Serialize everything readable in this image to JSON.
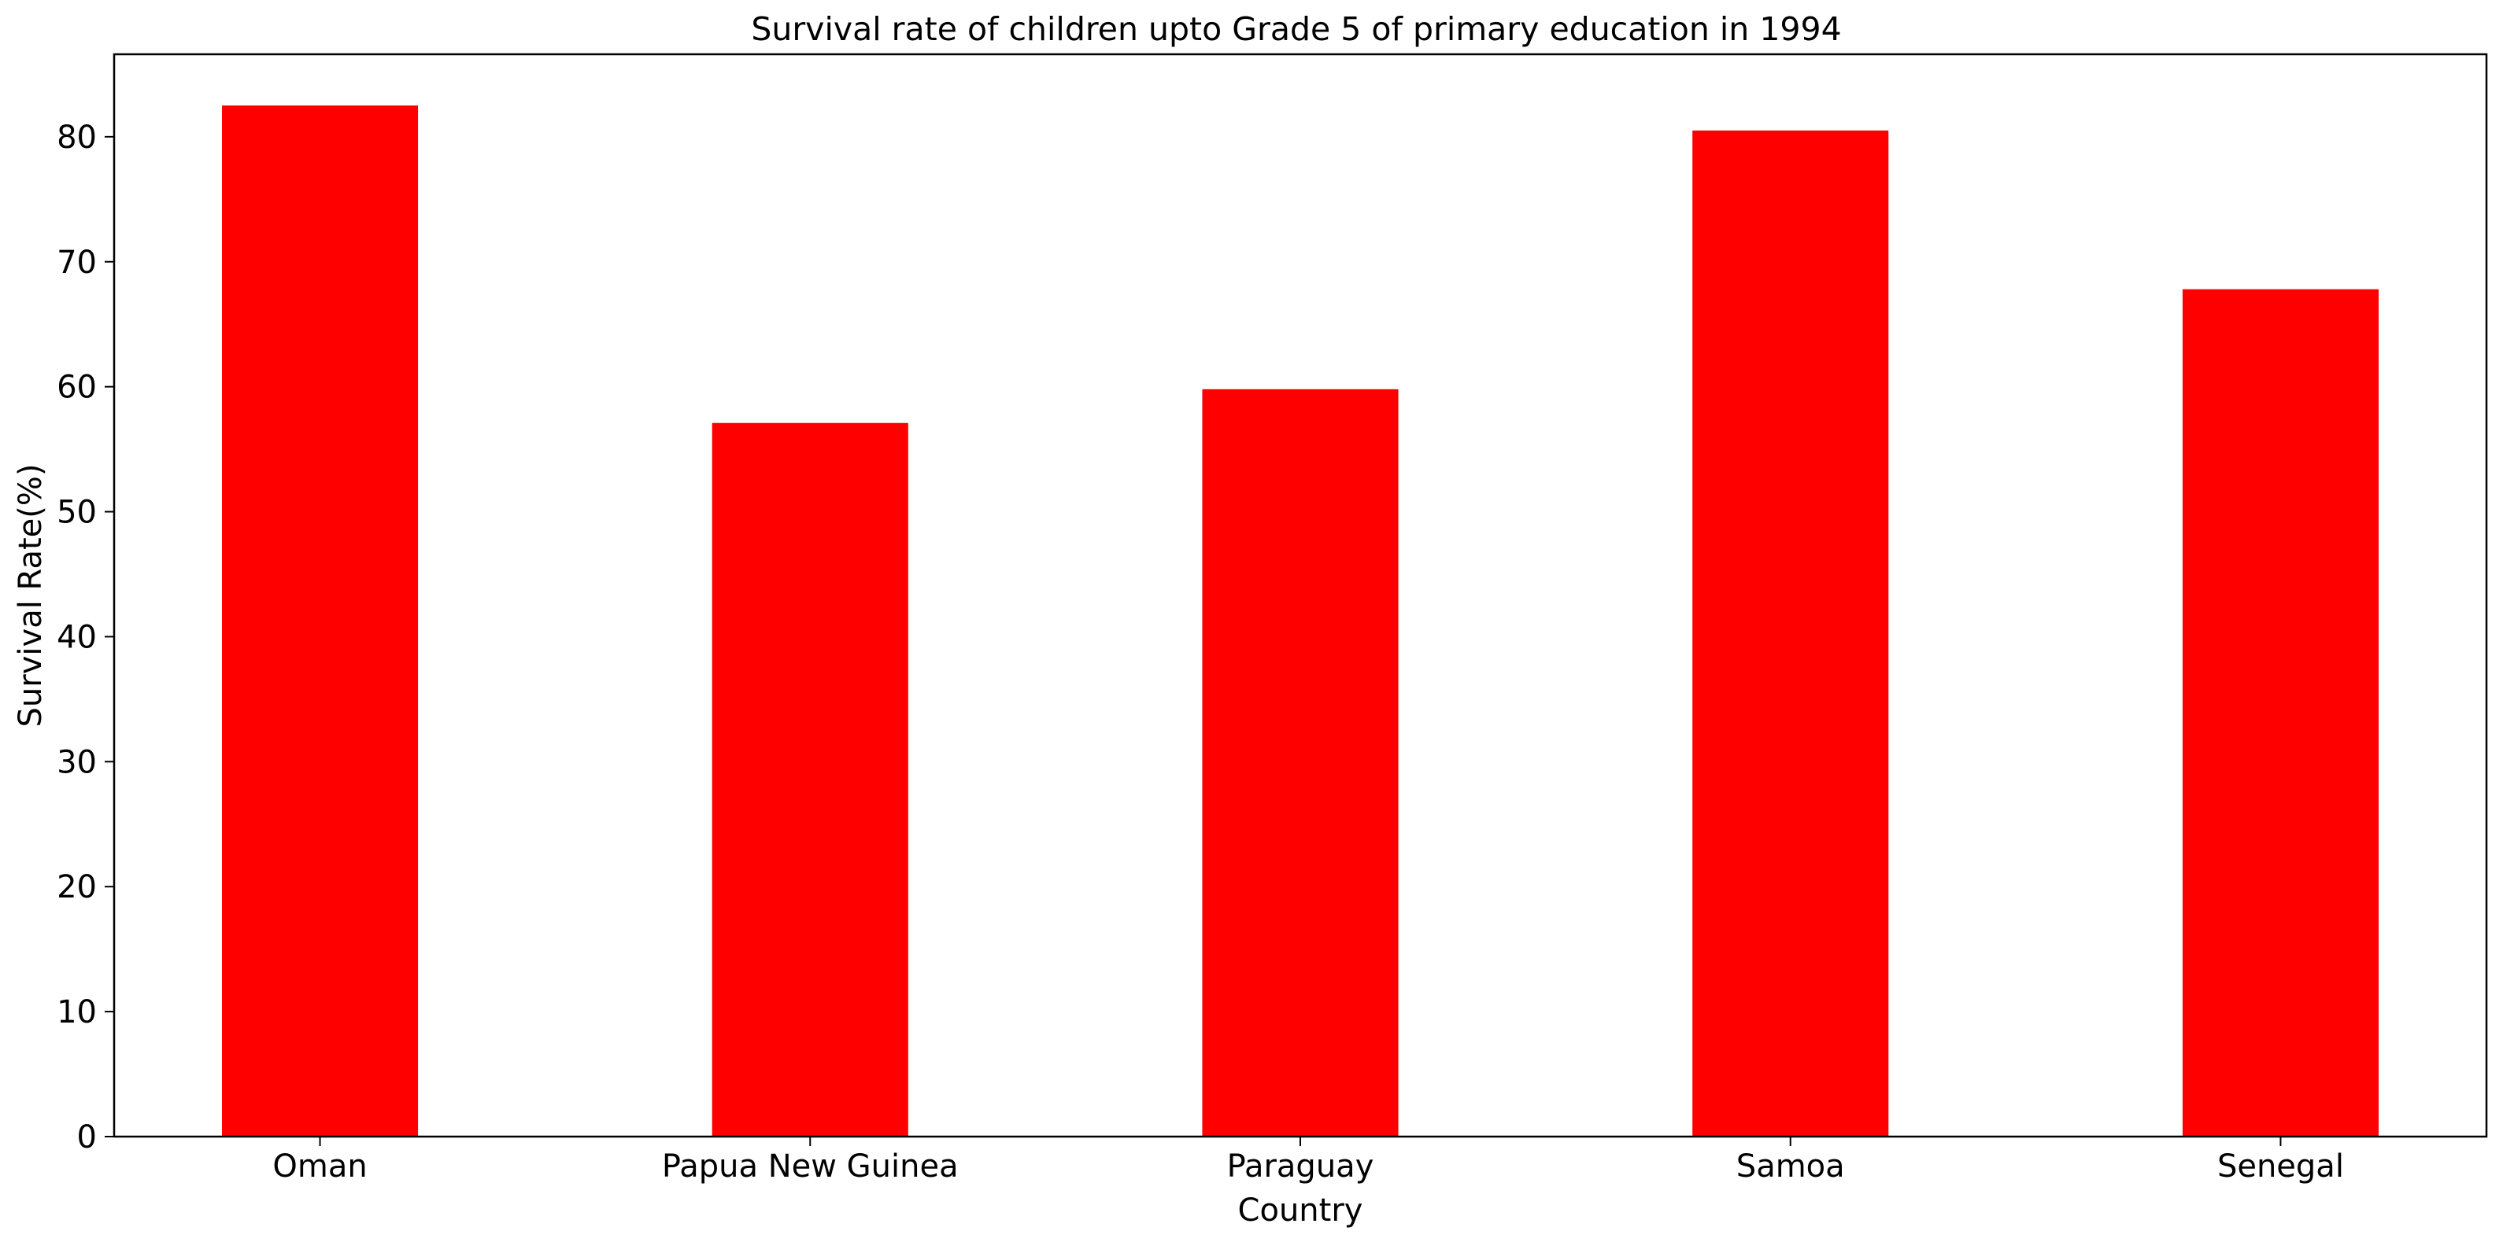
{
  "chart_data": {
    "type": "bar",
    "title": "Survival rate of children upto Grade 5 of primary education in 1994",
    "xlabel": "Country",
    "ylabel": "Survival Rate(%)",
    "categories": [
      "Oman",
      "Papua New Guinea",
      "Paraguay",
      "Samoa",
      "Senegal"
    ],
    "values": [
      82.5,
      57.1,
      59.8,
      80.5,
      67.8
    ],
    "ylim": [
      0,
      86.6
    ],
    "yticks": [
      0,
      10,
      20,
      30,
      40,
      50,
      60,
      70,
      80
    ],
    "grid": false,
    "legend": "none",
    "bar_color": "#ff0000"
  }
}
